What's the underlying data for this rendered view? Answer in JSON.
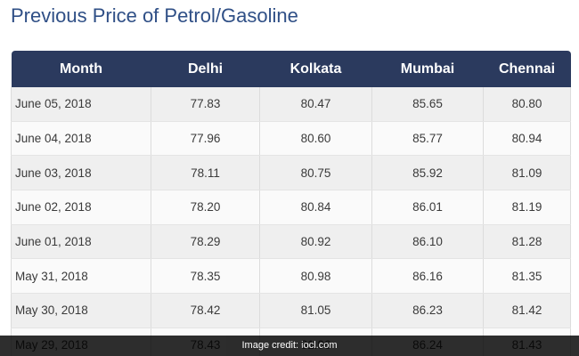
{
  "title": "Previous Price of Petrol/Gasoline",
  "table": {
    "headers": [
      "Month",
      "Delhi",
      "Kolkata",
      "Mumbai",
      "Chennai"
    ],
    "rows": [
      [
        "June 05, 2018",
        "77.83",
        "80.47",
        "85.65",
        "80.80"
      ],
      [
        "June 04, 2018",
        "77.96",
        "80.60",
        "85.77",
        "80.94"
      ],
      [
        "June 03, 2018",
        "78.11",
        "80.75",
        "85.92",
        "81.09"
      ],
      [
        "June 02, 2018",
        "78.20",
        "80.84",
        "86.01",
        "81.19"
      ],
      [
        "June 01, 2018",
        "78.29",
        "80.92",
        "86.10",
        "81.28"
      ],
      [
        "May 31, 2018",
        "78.35",
        "80.98",
        "86.16",
        "81.35"
      ],
      [
        "May 30, 2018",
        "78.42",
        "81.05",
        "86.23",
        "81.42"
      ],
      [
        "May 29, 2018",
        "78.43",
        "81.06",
        "86.24",
        "81.43"
      ]
    ]
  },
  "credit": "Image credit: iocl.com"
}
